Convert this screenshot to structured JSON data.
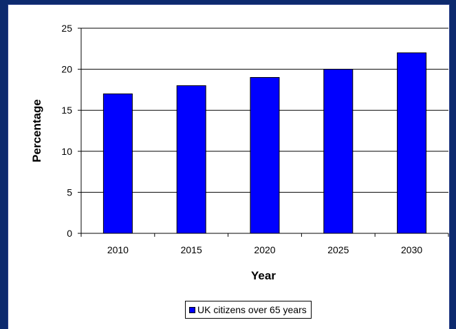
{
  "colors": {
    "background": "#0d2a6e",
    "bar_fill": "#0000ff",
    "bar_stroke": "#000000"
  },
  "chart_data": {
    "type": "bar",
    "title": "",
    "xlabel": "Year",
    "ylabel": "Percentage",
    "categories": [
      "2010",
      "2015",
      "2020",
      "2025",
      "2030"
    ],
    "series": [
      {
        "name": "UK citizens over 65 years",
        "values": [
          17,
          18,
          19,
          20,
          22
        ]
      }
    ],
    "ylim": [
      0,
      25
    ],
    "yticks": [
      0,
      5,
      10,
      15,
      20,
      25
    ],
    "grid": true,
    "legend_position": "bottom"
  }
}
